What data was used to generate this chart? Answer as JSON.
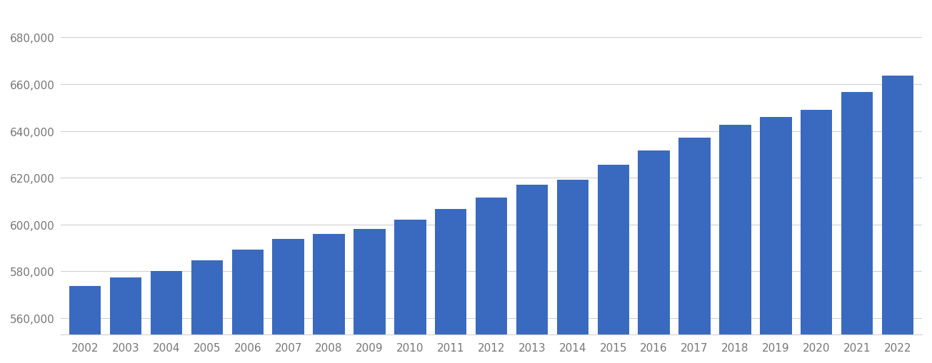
{
  "years": [
    2002,
    2003,
    2004,
    2005,
    2006,
    2007,
    2008,
    2009,
    2010,
    2011,
    2012,
    2013,
    2014,
    2015,
    2016,
    2017,
    2018,
    2019,
    2020,
    2021,
    2022
  ],
  "values": [
    573800,
    577400,
    580200,
    584800,
    589300,
    593800,
    595900,
    598200,
    602200,
    606500,
    611500,
    617000,
    619200,
    625500,
    631500,
    637000,
    642500,
    645800,
    649000,
    656500,
    663500
  ],
  "bar_color": "#3a6abf",
  "background_color": "#ffffff",
  "grid_color": "#d0d0d0",
  "tick_label_color": "#777777",
  "ylim_min": 553000,
  "ylim_max": 692000,
  "yticks": [
    560000,
    580000,
    600000,
    620000,
    640000,
    660000,
    680000
  ]
}
